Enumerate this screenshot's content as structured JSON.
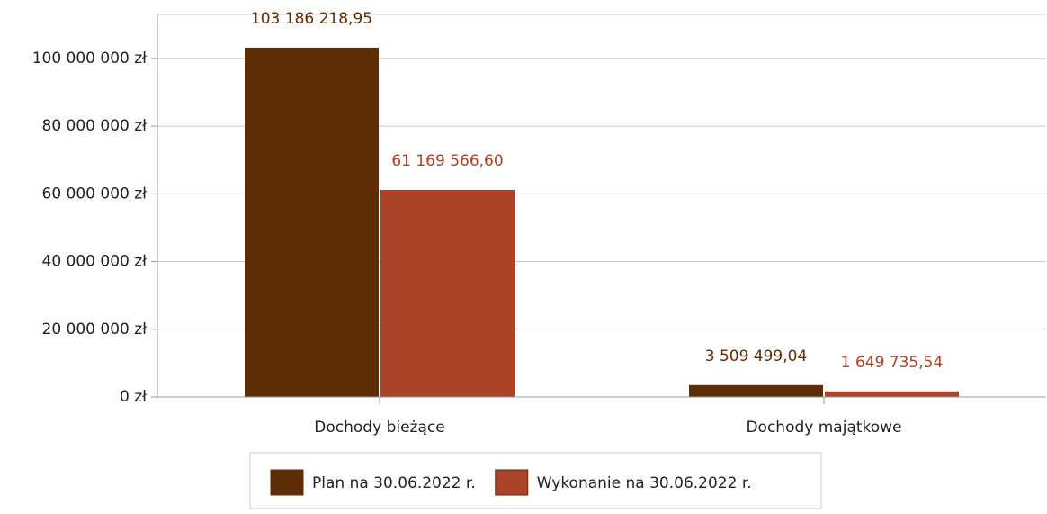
{
  "chart_data": {
    "type": "bar",
    "categories": [
      "Dochody bieżące",
      "Dochody majątkowe"
    ],
    "series": [
      {
        "name": "Plan na 30.06.2022 r.",
        "color": "#5e2d06",
        "values": [
          103186218.95,
          3509499.04
        ],
        "value_labels": [
          "103 186 218,95",
          "3 509 499,04"
        ]
      },
      {
        "name": "Wykonanie na 30.06.2022 r.",
        "color": "#ac4326",
        "values": [
          61169566.6,
          1649735.54
        ],
        "value_labels": [
          "61 169 566,60",
          "1 649 735,54"
        ]
      }
    ],
    "ylim": [
      0,
      113000000
    ],
    "yticks": [
      {
        "value": 0,
        "label": "0 zł"
      },
      {
        "value": 20000000,
        "label": "20 000 000 zł"
      },
      {
        "value": 40000000,
        "label": "40 000 000 zł"
      },
      {
        "value": 60000000,
        "label": "60 000 000 zł"
      },
      {
        "value": 80000000,
        "label": "80 000 000 zł"
      },
      {
        "value": 100000000,
        "label": "100 000 000 zł"
      }
    ],
    "grid": true,
    "legend": "bottom"
  }
}
